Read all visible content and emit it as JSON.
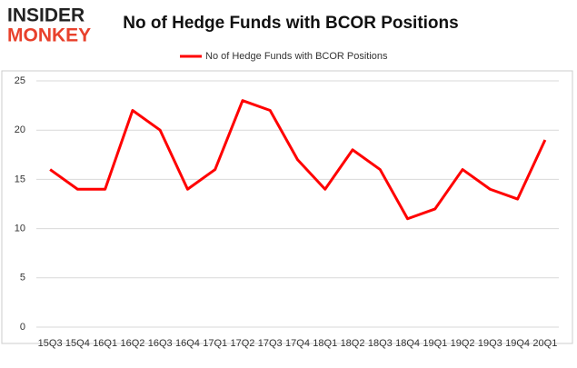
{
  "logo": {
    "line1": "INSIDER",
    "line2": "MONKEY"
  },
  "chart_data": {
    "type": "line",
    "title": "No of Hedge Funds with BCOR Positions",
    "categories": [
      "15Q3",
      "15Q4",
      "16Q1",
      "16Q2",
      "16Q3",
      "16Q4",
      "17Q1",
      "17Q2",
      "17Q3",
      "17Q4",
      "18Q1",
      "18Q2",
      "18Q3",
      "18Q4",
      "19Q1",
      "19Q2",
      "19Q3",
      "19Q4",
      "20Q1"
    ],
    "series": [
      {
        "name": "No of Hedge Funds with BCOR Positions",
        "color": "#ff0000",
        "values": [
          16,
          14,
          14,
          22,
          20,
          14,
          16,
          23,
          22,
          17,
          14,
          18,
          16,
          11,
          12,
          16,
          14,
          13,
          19
        ]
      }
    ],
    "ylim": [
      0,
      25
    ],
    "yticks": [
      0,
      5,
      10,
      15,
      20,
      25
    ],
    "grid": true,
    "legend": "top"
  }
}
